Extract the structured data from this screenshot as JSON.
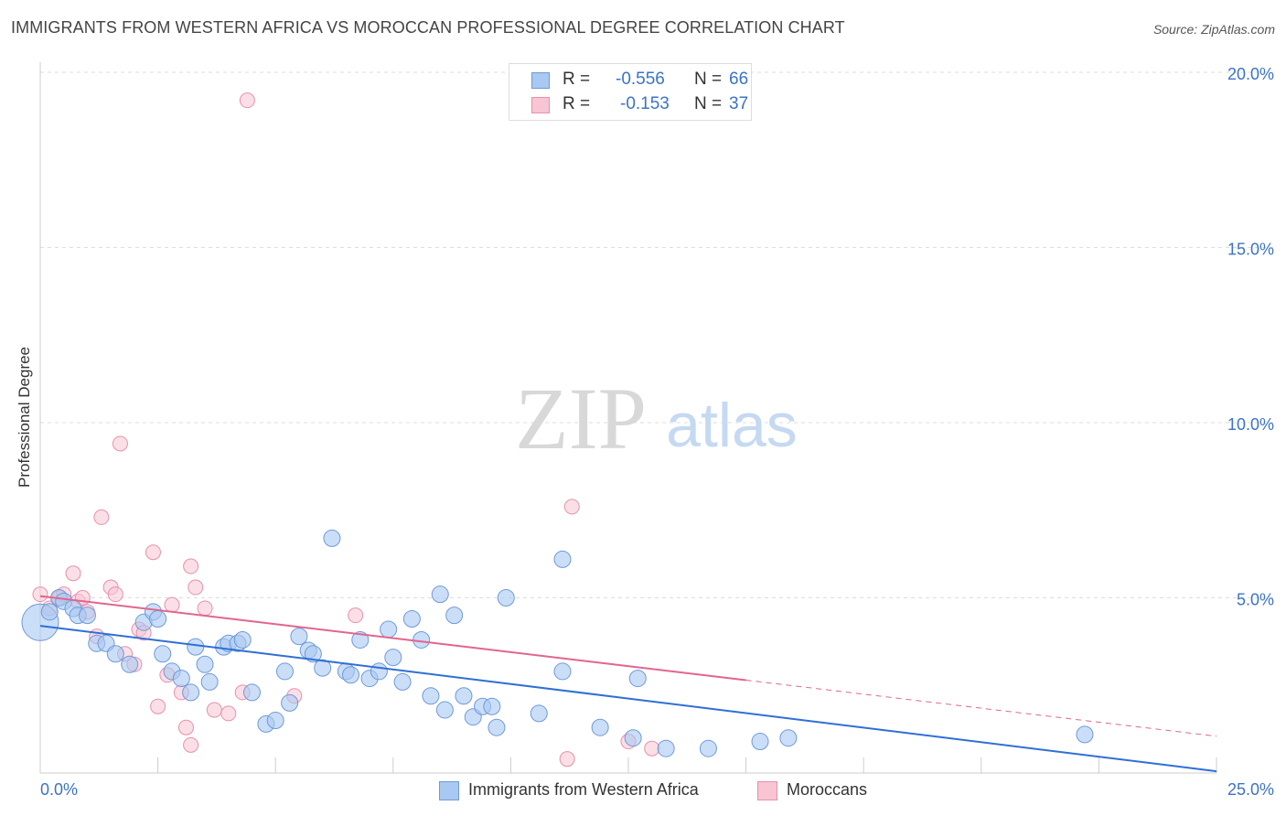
{
  "title": "IMMIGRANTS FROM WESTERN AFRICA VS MOROCCAN PROFESSIONAL DEGREE CORRELATION CHART",
  "source": "Source: ZipAtlas.com",
  "watermark": {
    "zip": "ZIP",
    "atlas": "atlas"
  },
  "legend": {
    "r_label": "R =",
    "n_label": "N =",
    "rows": [
      {
        "r": "-0.556",
        "n": "66",
        "color": "#a9c8f2",
        "edge": "#6f9ad8"
      },
      {
        "r": "-0.153",
        "n": "37",
        "color": "#f7c5d4",
        "edge": "#e890ab"
      }
    ]
  },
  "colors": {
    "blue_fill": "#a9c8f2",
    "blue_edge": "#6f9ad8",
    "blue_line": "#2f6fd6",
    "pink_fill": "#f7c5d4",
    "pink_edge": "#e890ab",
    "pink_line": "#e2658e",
    "tick_text": "#3b73c8"
  },
  "chart_data": {
    "type": "scatter",
    "title": "IMMIGRANTS FROM WESTERN AFRICA VS MOROCCAN PROFESSIONAL DEGREE CORRELATION CHART",
    "xlabel": "",
    "ylabel": "Professional Degree",
    "xlim": [
      0,
      25
    ],
    "ylim": [
      0,
      20
    ],
    "x_tick_labels": [
      "0.0%",
      "25.0%"
    ],
    "y_ticks": [
      5,
      10,
      15,
      20
    ],
    "y_tick_labels": [
      "5.0%",
      "10.0%",
      "15.0%",
      "20.0%"
    ],
    "grid": true,
    "legend_position": "top-center",
    "series": [
      {
        "name": "Immigrants from Western Africa",
        "r": -0.556,
        "n": 66,
        "trend": {
          "x": [
            0,
            25
          ],
          "y": [
            4.2,
            0.05
          ]
        },
        "points": [
          [
            0.0,
            4.3
          ],
          [
            0.2,
            4.6
          ],
          [
            0.4,
            5.0
          ],
          [
            0.5,
            4.9
          ],
          [
            0.7,
            4.7
          ],
          [
            0.8,
            4.5
          ],
          [
            1.0,
            4.5
          ],
          [
            1.2,
            3.7
          ],
          [
            1.4,
            3.7
          ],
          [
            1.6,
            3.4
          ],
          [
            1.9,
            3.1
          ],
          [
            2.2,
            4.3
          ],
          [
            2.4,
            4.6
          ],
          [
            2.5,
            4.4
          ],
          [
            2.6,
            3.4
          ],
          [
            2.8,
            2.9
          ],
          [
            3.0,
            2.7
          ],
          [
            3.2,
            2.3
          ],
          [
            3.3,
            3.6
          ],
          [
            3.5,
            3.1
          ],
          [
            3.6,
            2.6
          ],
          [
            3.9,
            3.6
          ],
          [
            4.0,
            3.7
          ],
          [
            4.2,
            3.7
          ],
          [
            4.3,
            3.8
          ],
          [
            4.5,
            2.3
          ],
          [
            4.8,
            1.4
          ],
          [
            5.0,
            1.5
          ],
          [
            5.2,
            2.9
          ],
          [
            5.3,
            2.0
          ],
          [
            5.5,
            3.9
          ],
          [
            5.7,
            3.5
          ],
          [
            5.8,
            3.4
          ],
          [
            6.0,
            3.0
          ],
          [
            6.2,
            6.7
          ],
          [
            6.5,
            2.9
          ],
          [
            6.6,
            2.8
          ],
          [
            6.8,
            3.8
          ],
          [
            7.0,
            2.7
          ],
          [
            7.2,
            2.9
          ],
          [
            7.4,
            4.1
          ],
          [
            7.5,
            3.3
          ],
          [
            7.7,
            2.6
          ],
          [
            7.9,
            4.4
          ],
          [
            8.1,
            3.8
          ],
          [
            8.3,
            2.2
          ],
          [
            8.5,
            5.1
          ],
          [
            8.6,
            1.8
          ],
          [
            8.8,
            4.5
          ],
          [
            9.0,
            2.2
          ],
          [
            9.2,
            1.6
          ],
          [
            9.4,
            1.9
          ],
          [
            9.6,
            1.9
          ],
          [
            9.7,
            1.3
          ],
          [
            9.9,
            5.0
          ],
          [
            10.6,
            1.7
          ],
          [
            11.1,
            6.1
          ],
          [
            11.1,
            2.9
          ],
          [
            11.9,
            1.3
          ],
          [
            12.6,
            1.0
          ],
          [
            12.7,
            2.7
          ],
          [
            13.3,
            0.7
          ],
          [
            14.2,
            0.7
          ],
          [
            15.3,
            0.9
          ],
          [
            15.9,
            1.0
          ],
          [
            22.2,
            1.1
          ]
        ]
      },
      {
        "name": "Moroccans",
        "r": -0.153,
        "n": 37,
        "trend": {
          "x": [
            0,
            15
          ],
          "y": [
            5.05,
            2.65
          ]
        },
        "trend_extension": {
          "x": [
            15,
            25
          ],
          "y": [
            2.65,
            1.05
          ]
        },
        "points": [
          [
            0.0,
            5.1
          ],
          [
            0.2,
            4.7
          ],
          [
            0.4,
            5.0
          ],
          [
            0.5,
            5.1
          ],
          [
            0.7,
            5.7
          ],
          [
            0.8,
            4.9
          ],
          [
            0.9,
            5.0
          ],
          [
            1.0,
            4.6
          ],
          [
            1.2,
            3.9
          ],
          [
            1.3,
            7.3
          ],
          [
            1.5,
            5.3
          ],
          [
            1.6,
            5.1
          ],
          [
            1.7,
            9.4
          ],
          [
            1.8,
            3.4
          ],
          [
            2.0,
            3.1
          ],
          [
            2.1,
            4.1
          ],
          [
            2.2,
            4.0
          ],
          [
            2.4,
            6.3
          ],
          [
            2.5,
            1.9
          ],
          [
            2.7,
            2.8
          ],
          [
            2.8,
            4.8
          ],
          [
            3.0,
            2.3
          ],
          [
            3.1,
            1.3
          ],
          [
            3.2,
            0.8
          ],
          [
            3.2,
            5.9
          ],
          [
            3.3,
            5.3
          ],
          [
            3.5,
            4.7
          ],
          [
            3.7,
            1.8
          ],
          [
            4.0,
            1.7
          ],
          [
            4.3,
            2.3
          ],
          [
            4.4,
            19.2
          ],
          [
            5.4,
            2.2
          ],
          [
            6.7,
            4.5
          ],
          [
            11.2,
            0.4
          ],
          [
            11.3,
            7.6
          ],
          [
            12.5,
            0.9
          ],
          [
            13.0,
            0.7
          ]
        ]
      }
    ]
  }
}
